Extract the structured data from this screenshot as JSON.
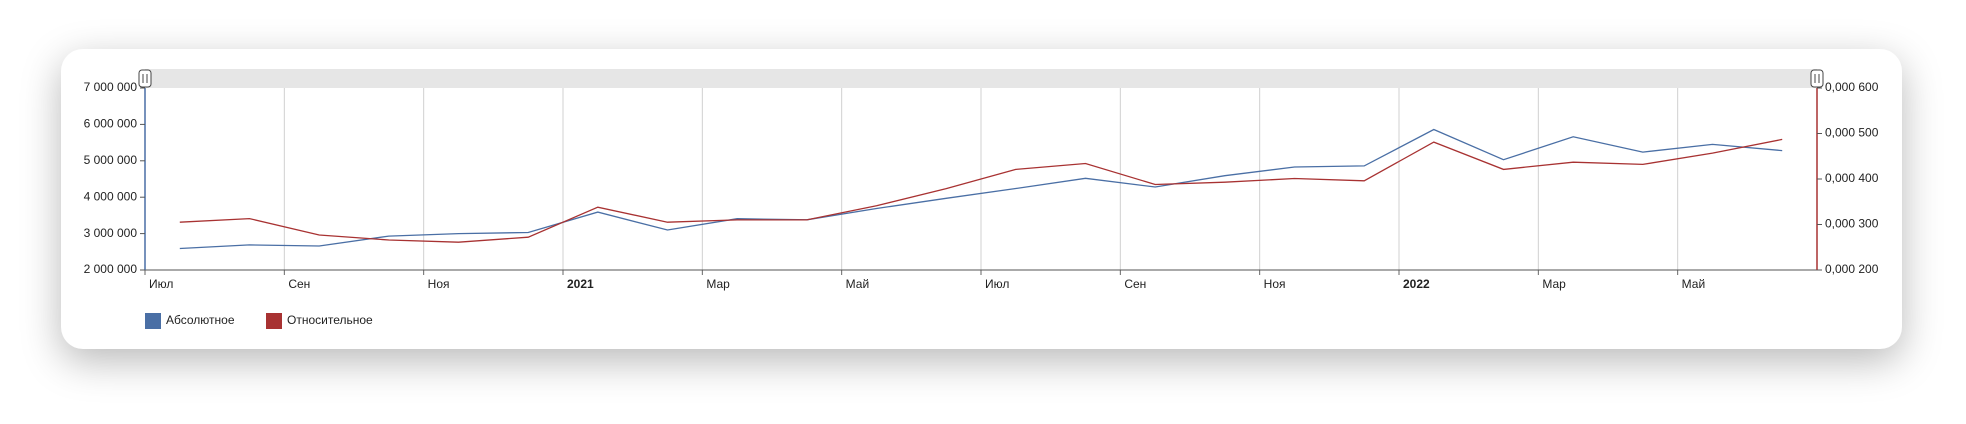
{
  "chart_data": {
    "type": "line",
    "x": [
      "2020-07",
      "2020-08",
      "2020-09",
      "2020-10",
      "2020-11",
      "2020-12",
      "2021-01",
      "2021-02",
      "2021-03",
      "2021-04",
      "2021-05",
      "2021-06",
      "2021-07",
      "2021-08",
      "2021-09",
      "2021-10",
      "2021-11",
      "2021-12",
      "2022-01",
      "2022-02",
      "2022-03",
      "2022-04",
      "2022-05",
      "2022-06"
    ],
    "series": [
      {
        "name": "Абсолютное",
        "color": "#4a6fa5",
        "axis": "y",
        "values": [
          2590000,
          2690000,
          2660000,
          2930000,
          3000000,
          3030000,
          3590000,
          3100000,
          3410000,
          3380000,
          3690000,
          3970000,
          4240000,
          4520000,
          4280000,
          4590000,
          4830000,
          4860000,
          5860000,
          5030000,
          5660000,
          5240000,
          5450000,
          5280000
        ]
      },
      {
        "name": "Относительное",
        "color": "#a83232",
        "axis": "y2",
        "values": [
          0.000305,
          0.000313,
          0.000277,
          0.000266,
          0.000261,
          0.000272,
          0.000338,
          0.000305,
          0.00031,
          0.00031,
          0.000341,
          0.000379,
          0.000421,
          0.000434,
          0.000388,
          0.000393,
          0.000401,
          0.000396,
          0.000481,
          0.000421,
          0.000437,
          0.000432,
          0.000457,
          0.000487
        ]
      }
    ],
    "xlim": [
      "2020-07",
      "2022-07"
    ],
    "xticks": [
      {
        "value": "2020-07",
        "label": "Июл"
      },
      {
        "value": "2020-09",
        "label": "Сен"
      },
      {
        "value": "2020-11",
        "label": "Ноя"
      },
      {
        "value": "2021-01",
        "label": "2021"
      },
      {
        "value": "2021-03",
        "label": "Мар"
      },
      {
        "value": "2021-05",
        "label": "Май"
      },
      {
        "value": "2021-07",
        "label": "Июл"
      },
      {
        "value": "2021-09",
        "label": "Сен"
      },
      {
        "value": "2021-11",
        "label": "Ноя"
      },
      {
        "value": "2022-01",
        "label": "2022"
      },
      {
        "value": "2022-03",
        "label": "Мар"
      },
      {
        "value": "2022-05",
        "label": "Май"
      }
    ],
    "ylim": [
      2000000,
      7000000
    ],
    "yticks": [
      {
        "value": 2000000,
        "label": "2 000 000"
      },
      {
        "value": 3000000,
        "label": "3 000 000"
      },
      {
        "value": 4000000,
        "label": "4 000 000"
      },
      {
        "value": 5000000,
        "label": "5 000 000"
      },
      {
        "value": 6000000,
        "label": "6 000 000"
      },
      {
        "value": 7000000,
        "label": "7 000 000"
      }
    ],
    "y2lim": [
      0.0002,
      0.0006
    ],
    "y2ticks": [
      {
        "value": 0.0002,
        "label": "0,000 200"
      },
      {
        "value": 0.0003,
        "label": "0,000 300"
      },
      {
        "value": 0.0004,
        "label": "0,000 400"
      },
      {
        "value": 0.0005,
        "label": "0,000 500"
      },
      {
        "value": 0.0006,
        "label": "0,000 600"
      }
    ],
    "grid": true,
    "legend": "bottom-left"
  }
}
